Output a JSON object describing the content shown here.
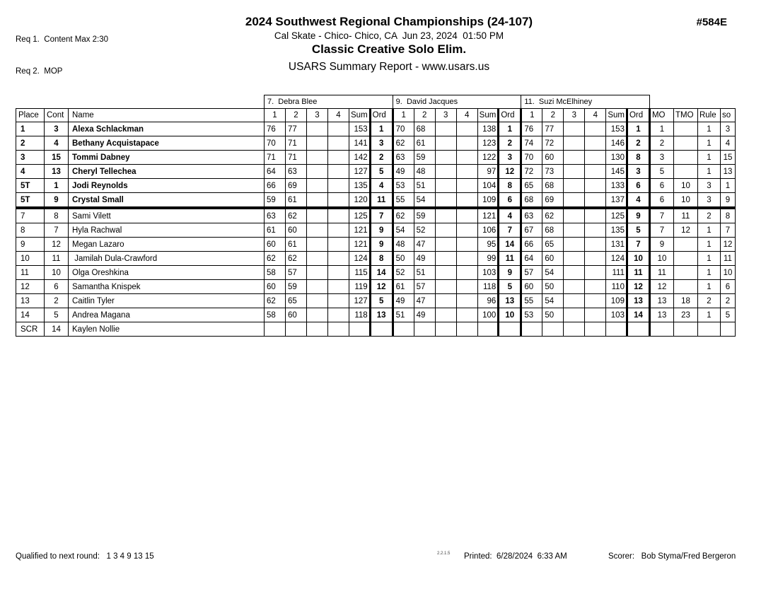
{
  "page": {
    "req1": "Req 1.  Content Max 2:30",
    "req2": "Req 2.  MOP",
    "event_number": "#584E",
    "title": "2024 Southwest Regional Championships (24-107)",
    "venue_line": "Cal Skate - Chico- Chico, CA  Jun 23, 2024  01:50 PM",
    "event_name": "Classic Creative Solo Elim.",
    "report_line": "USARS Summary Report - www.usars.us"
  },
  "table": {
    "judges": [
      "7.  Debra Blee",
      "9.  David Jacques",
      "11.  Suzi McElhiney"
    ],
    "left_headers": [
      "Place",
      "Cont",
      "Name"
    ],
    "judge_sub_headers": [
      "1",
      "2",
      "3",
      "4",
      "Sum",
      "Ord"
    ],
    "right_headers": [
      "MO",
      "TMO",
      "Rule",
      "so"
    ],
    "cut_line_after_row": 6,
    "rows": [
      {
        "place": "1",
        "cont": "3",
        "name": "Alexa Schlackman",
        "bold": true,
        "j7": [
          "76",
          "77",
          "",
          "",
          "153",
          "1"
        ],
        "j9": [
          "70",
          "68",
          "",
          "",
          "138",
          "1"
        ],
        "j11": [
          "76",
          "77",
          "",
          "",
          "153",
          "1"
        ],
        "mo": "1",
        "tmo": "",
        "rule": "1",
        "so": "3"
      },
      {
        "place": "2",
        "cont": "4",
        "name": "Bethany Acquistapace",
        "bold": true,
        "j7": [
          "70",
          "71",
          "",
          "",
          "141",
          "3"
        ],
        "j9": [
          "62",
          "61",
          "",
          "",
          "123",
          "2"
        ],
        "j11": [
          "74",
          "72",
          "",
          "",
          "146",
          "2"
        ],
        "mo": "2",
        "tmo": "",
        "rule": "1",
        "so": "4"
      },
      {
        "place": "3",
        "cont": "15",
        "name": "Tommi Dabney",
        "bold": true,
        "j7": [
          "71",
          "71",
          "",
          "",
          "142",
          "2"
        ],
        "j9": [
          "63",
          "59",
          "",
          "",
          "122",
          "3"
        ],
        "j11": [
          "70",
          "60",
          "",
          "",
          "130",
          "8"
        ],
        "mo": "3",
        "tmo": "",
        "rule": "1",
        "so": "15"
      },
      {
        "place": "4",
        "cont": "13",
        "name": "Cheryl Tellechea",
        "bold": true,
        "j7": [
          "64",
          "63",
          "",
          "",
          "127",
          "5"
        ],
        "j9": [
          "49",
          "48",
          "",
          "",
          "97",
          "12"
        ],
        "j11": [
          "72",
          "73",
          "",
          "",
          "145",
          "3"
        ],
        "mo": "5",
        "tmo": "",
        "rule": "1",
        "so": "13"
      },
      {
        "place": "5T",
        "cont": "1",
        "name": "Jodi Reynolds",
        "bold": true,
        "j7": [
          "66",
          "69",
          "",
          "",
          "135",
          "4"
        ],
        "j9": [
          "53",
          "51",
          "",
          "",
          "104",
          "8"
        ],
        "j11": [
          "65",
          "68",
          "",
          "",
          "133",
          "6"
        ],
        "mo": "6",
        "tmo": "10",
        "rule": "3",
        "so": "1"
      },
      {
        "place": "5T",
        "cont": "9",
        "name": "Crystal Small",
        "bold": true,
        "j7": [
          "59",
          "61",
          "",
          "",
          "120",
          "11"
        ],
        "j9": [
          "55",
          "54",
          "",
          "",
          "109",
          "6"
        ],
        "j11": [
          "68",
          "69",
          "",
          "",
          "137",
          "4"
        ],
        "mo": "6",
        "tmo": "10",
        "rule": "3",
        "so": "9"
      },
      {
        "place": "7",
        "cont": "8",
        "name": "Sami Vilett",
        "bold": false,
        "j7": [
          "63",
          "62",
          "",
          "",
          "125",
          "7"
        ],
        "j9": [
          "62",
          "59",
          "",
          "",
          "121",
          "4"
        ],
        "j11": [
          "63",
          "62",
          "",
          "",
          "125",
          "9"
        ],
        "mo": "7",
        "tmo": "11",
        "rule": "2",
        "so": "8"
      },
      {
        "place": "8",
        "cont": "7",
        "name": "Hyla Rachwal",
        "bold": false,
        "j7": [
          "61",
          "60",
          "",
          "",
          "121",
          "9"
        ],
        "j9": [
          "54",
          "52",
          "",
          "",
          "106",
          "7"
        ],
        "j11": [
          "67",
          "68",
          "",
          "",
          "135",
          "5"
        ],
        "mo": "7",
        "tmo": "12",
        "rule": "1",
        "so": "7"
      },
      {
        "place": "9",
        "cont": "12",
        "name": "Megan Lazaro",
        "bold": false,
        "j7": [
          "60",
          "61",
          "",
          "",
          "121",
          "9"
        ],
        "j9": [
          "48",
          "47",
          "",
          "",
          "95",
          "14"
        ],
        "j11": [
          "66",
          "65",
          "",
          "",
          "131",
          "7"
        ],
        "mo": "9",
        "tmo": "",
        "rule": "1",
        "so": "12"
      },
      {
        "place": "10",
        "cont": "11",
        "name": " Jamilah Dula-Crawford",
        "bold": false,
        "j7": [
          "62",
          "62",
          "",
          "",
          "124",
          "8"
        ],
        "j9": [
          "50",
          "49",
          "",
          "",
          "99",
          "11"
        ],
        "j11": [
          "64",
          "60",
          "",
          "",
          "124",
          "10"
        ],
        "mo": "10",
        "tmo": "",
        "rule": "1",
        "so": "11"
      },
      {
        "place": "11",
        "cont": "10",
        "name": "Olga Oreshkina",
        "bold": false,
        "j7": [
          "58",
          "57",
          "",
          "",
          "115",
          "14"
        ],
        "j9": [
          "52",
          "51",
          "",
          "",
          "103",
          "9"
        ],
        "j11": [
          "57",
          "54",
          "",
          "",
          "111",
          "11"
        ],
        "mo": "11",
        "tmo": "",
        "rule": "1",
        "so": "10"
      },
      {
        "place": "12",
        "cont": "6",
        "name": "Samantha Knispek",
        "bold": false,
        "j7": [
          "60",
          "59",
          "",
          "",
          "119",
          "12"
        ],
        "j9": [
          "61",
          "57",
          "",
          "",
          "118",
          "5"
        ],
        "j11": [
          "60",
          "50",
          "",
          "",
          "110",
          "12"
        ],
        "mo": "12",
        "tmo": "",
        "rule": "1",
        "so": "6"
      },
      {
        "place": "13",
        "cont": "2",
        "name": "Caitlin Tyler",
        "bold": false,
        "j7": [
          "62",
          "65",
          "",
          "",
          "127",
          "5"
        ],
        "j9": [
          "49",
          "47",
          "",
          "",
          "96",
          "13"
        ],
        "j11": [
          "55",
          "54",
          "",
          "",
          "109",
          "13"
        ],
        "mo": "13",
        "tmo": "18",
        "rule": "2",
        "so": "2"
      },
      {
        "place": "14",
        "cont": "5",
        "name": "Andrea Magana",
        "bold": false,
        "j7": [
          "58",
          "60",
          "",
          "",
          "118",
          "13"
        ],
        "j9": [
          "51",
          "49",
          "",
          "",
          "100",
          "10"
        ],
        "j11": [
          "53",
          "50",
          "",
          "",
          "103",
          "14"
        ],
        "mo": "13",
        "tmo": "23",
        "rule": "1",
        "so": "5"
      },
      {
        "place": "SCR",
        "cont": "14",
        "name": "Kaylen Nollie",
        "bold": false,
        "j7": [
          "",
          "",
          "",
          "",
          "",
          ""
        ],
        "j9": [
          "",
          "",
          "",
          "",
          "",
          ""
        ],
        "j11": [
          "",
          "",
          "",
          "",
          "",
          ""
        ],
        "mo": "",
        "tmo": "",
        "rule": "",
        "so": ""
      }
    ]
  },
  "footer": {
    "qualified": "Qualified to next round:   1 3 4 9 13 15",
    "version": "2.2.1.5",
    "printed": "Printed:  6/28/2024  6:33 AM",
    "scorer": "Scorer:   Bob Styma/Fred Bergeron"
  }
}
